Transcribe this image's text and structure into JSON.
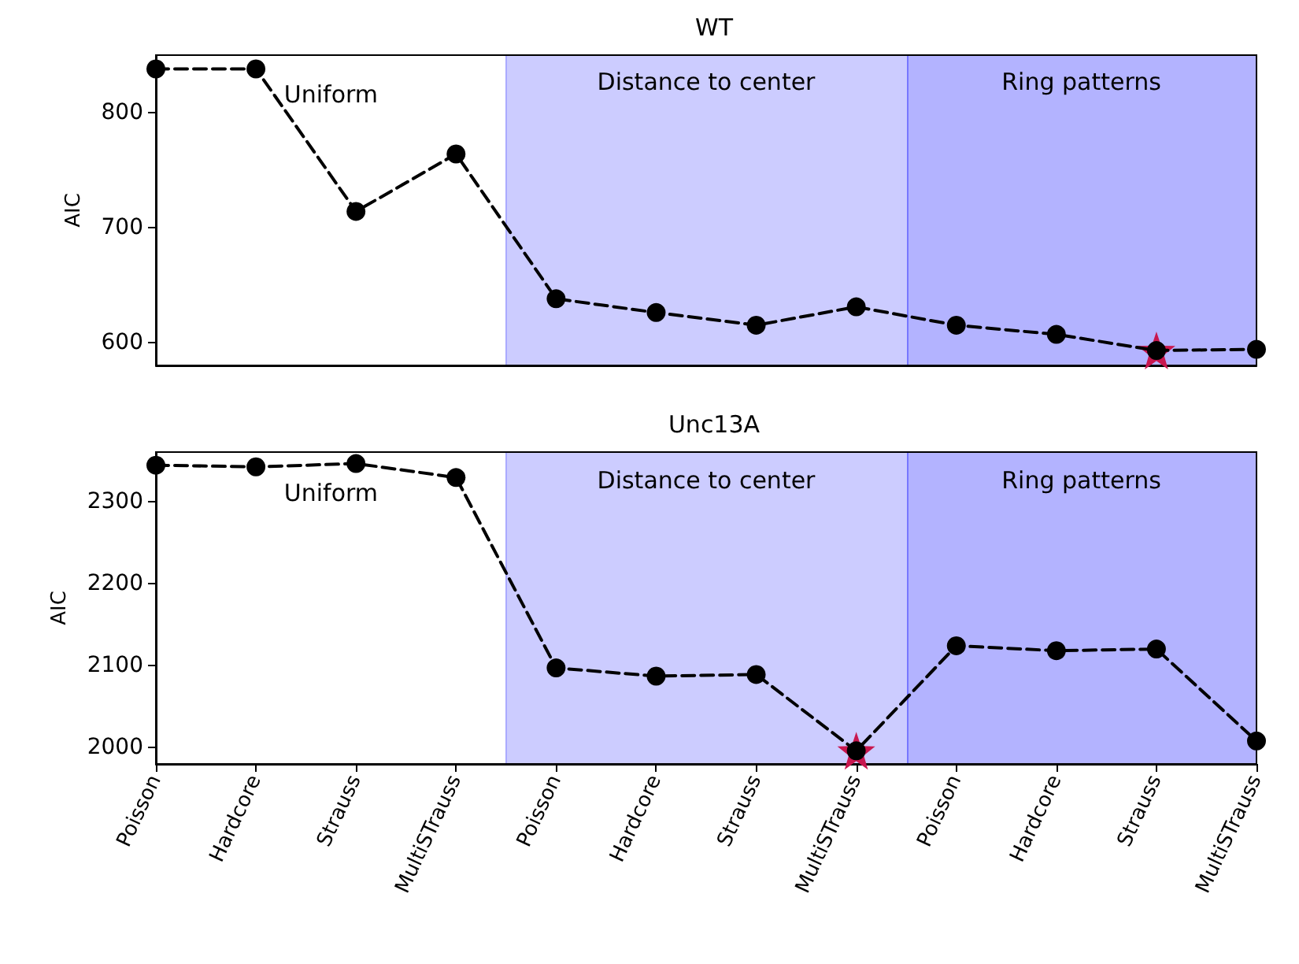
{
  "chart_data": [
    {
      "type": "line",
      "title": "WT",
      "ylabel": "AIC",
      "categories": [
        null,
        null,
        null,
        null,
        null,
        null,
        null,
        null,
        null,
        null,
        null,
        null
      ],
      "ylim": [
        580,
        850
      ],
      "yticks": [
        600,
        700,
        800
      ],
      "tick_labels": "y",
      "series": [
        {
          "type": "line",
          "color": "#000000",
          "marker": "circle",
          "line_style": "dashed",
          "values": [
            838,
            838,
            714,
            764,
            638,
            626,
            615,
            631,
            615,
            607,
            593,
            594
          ]
        },
        {
          "type": "scatter",
          "color": "#c8174f",
          "marker": "star",
          "values": [
            null,
            null,
            null,
            null,
            null,
            null,
            null,
            null,
            null,
            null,
            593,
            null
          ]
        }
      ],
      "annotations": [
        "Uniform",
        "Distance to center",
        "Ring patterns"
      ]
    },
    {
      "type": "line",
      "title": "Unc13A",
      "ylabel": "AIC",
      "categories": [
        "Poisson",
        "Hardcore",
        "Strauss",
        "MultiSTrauss",
        "Poisson",
        "Hardcore",
        "Strauss",
        "MultiSTrauss",
        "Poisson",
        "Hardcore",
        "Strauss",
        "MultiSTrauss"
      ],
      "ylim": [
        1980,
        2360
      ],
      "yticks": [
        2000,
        2100,
        2200,
        2300
      ],
      "series": [
        {
          "type": "line",
          "color": "#000000",
          "marker": "circle",
          "line_style": "dashed",
          "values": [
            2344,
            2342,
            2346,
            2329,
            2097,
            2087,
            2089,
            1996,
            2124,
            2118,
            2120,
            2008
          ]
        },
        {
          "type": "scatter",
          "color": "#c8174f",
          "marker": "star",
          "values": [
            null,
            null,
            null,
            null,
            null,
            null,
            null,
            1996,
            null,
            null,
            null,
            null
          ]
        }
      ],
      "annotations": [
        "Uniform",
        "Distance to center",
        "Ring patterns"
      ]
    }
  ]
}
